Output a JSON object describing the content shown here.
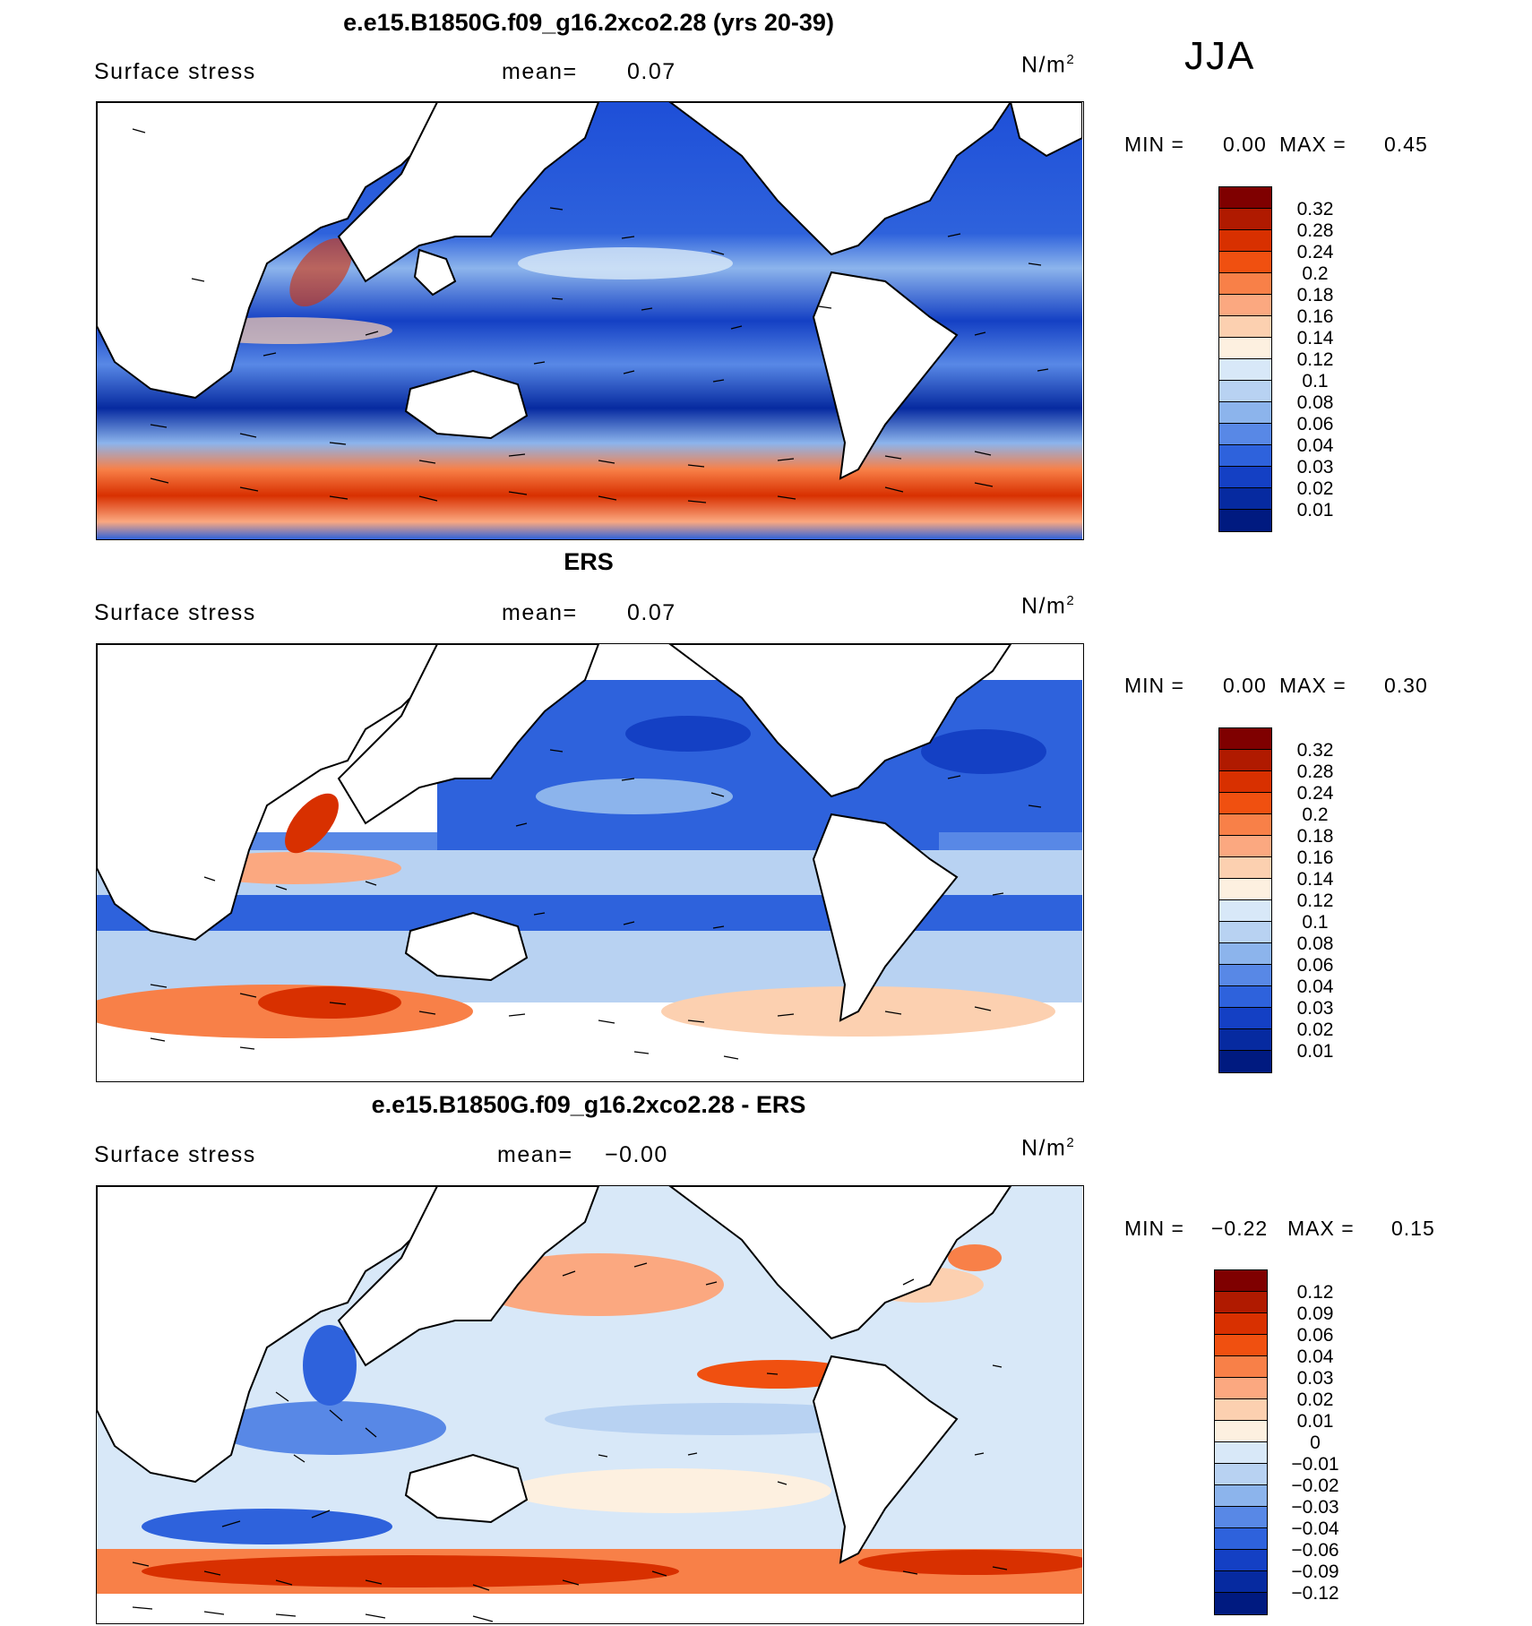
{
  "season": "JJA",
  "units_base": "N/m",
  "units_exp": "2",
  "panels": [
    {
      "title": "e.e15.B1850G.f09_g16.2xco2.28 (yrs 20-39)",
      "variable": "Surface stress",
      "mean_label": "mean=",
      "mean_value": "0.07",
      "min_label": "MIN =",
      "min_value": "0.00",
      "max_label": "MAX =",
      "max_value": "0.45",
      "colorbar": {
        "labels": [
          "0.32",
          "0.28",
          "0.24",
          "0.2",
          "0.18",
          "0.16",
          "0.14",
          "0.12",
          "0.1",
          "0.08",
          "0.06",
          "0.04",
          "0.03",
          "0.02",
          "0.01"
        ],
        "colors": [
          "#7f0000",
          "#b01a00",
          "#d83000",
          "#f05010",
          "#f88048",
          "#fba880",
          "#fcd0b0",
          "#fdf0e0",
          "#d8e8f8",
          "#b8d2f2",
          "#8cb4ec",
          "#5888e6",
          "#2e62dc",
          "#1440c4",
          "#062aa0",
          "#001a80"
        ]
      }
    },
    {
      "title": "ERS",
      "variable": "Surface stress",
      "mean_label": "mean=",
      "mean_value": "0.07",
      "min_label": "MIN =",
      "min_value": "0.00",
      "max_label": "MAX =",
      "max_value": "0.30",
      "colorbar": {
        "labels": [
          "0.32",
          "0.28",
          "0.24",
          "0.2",
          "0.18",
          "0.16",
          "0.14",
          "0.12",
          "0.1",
          "0.08",
          "0.06",
          "0.04",
          "0.03",
          "0.02",
          "0.01"
        ],
        "colors": [
          "#7f0000",
          "#b01a00",
          "#d83000",
          "#f05010",
          "#f88048",
          "#fba880",
          "#fcd0b0",
          "#fdf0e0",
          "#d8e8f8",
          "#b8d2f2",
          "#8cb4ec",
          "#5888e6",
          "#2e62dc",
          "#1440c4",
          "#062aa0",
          "#001a80"
        ]
      }
    },
    {
      "title": "e.e15.B1850G.f09_g16.2xco2.28 - ERS",
      "variable": "Surface stress",
      "mean_label": "mean=",
      "mean_value": "−0.00",
      "min_label": "MIN =",
      "min_value": "−0.22",
      "max_label": "MAX =",
      "max_value": "0.15",
      "colorbar": {
        "labels": [
          "0.12",
          "0.09",
          "0.06",
          "0.04",
          "0.03",
          "0.02",
          "0.01",
          "0",
          "−0.01",
          "−0.02",
          "−0.03",
          "−0.04",
          "−0.06",
          "−0.09",
          "−0.12"
        ],
        "colors": [
          "#7f0000",
          "#b01a00",
          "#d83000",
          "#f05010",
          "#f88048",
          "#fba880",
          "#fcd0b0",
          "#fdf0e0",
          "#d8e8f8",
          "#b8d2f2",
          "#8cb4ec",
          "#5888e6",
          "#2e62dc",
          "#1440c4",
          "#062aa0",
          "#001a80"
        ]
      }
    }
  ]
}
